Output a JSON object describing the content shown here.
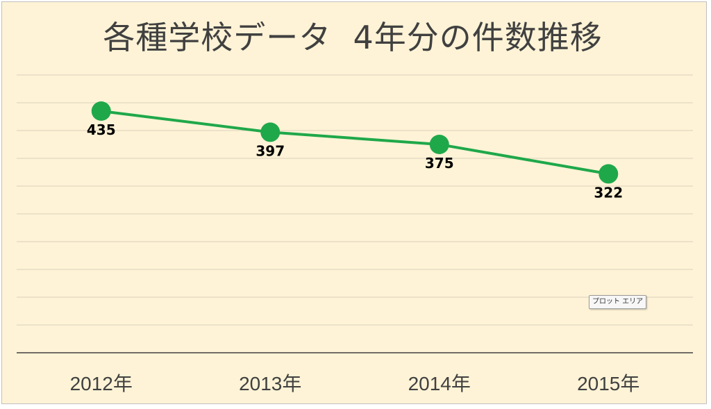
{
  "chart_data": {
    "type": "line",
    "title": "各種学校データ  4年分の件数推移",
    "xlabel": "",
    "ylabel": "",
    "categories": [
      "2012年",
      "2013年",
      "2014年",
      "2015年"
    ],
    "series": [
      {
        "values": [
          435,
          397,
          375,
          322
        ]
      }
    ],
    "data_labels": [
      "435",
      "397",
      "375",
      "322"
    ],
    "ylim": [
      0,
      500
    ],
    "grid": true,
    "legend": "none",
    "line_color": "#1fa84a",
    "marker_color": "#1fa84a",
    "background_color": "#fef3d6"
  },
  "tooltip": {
    "text": "プロット エリア"
  }
}
